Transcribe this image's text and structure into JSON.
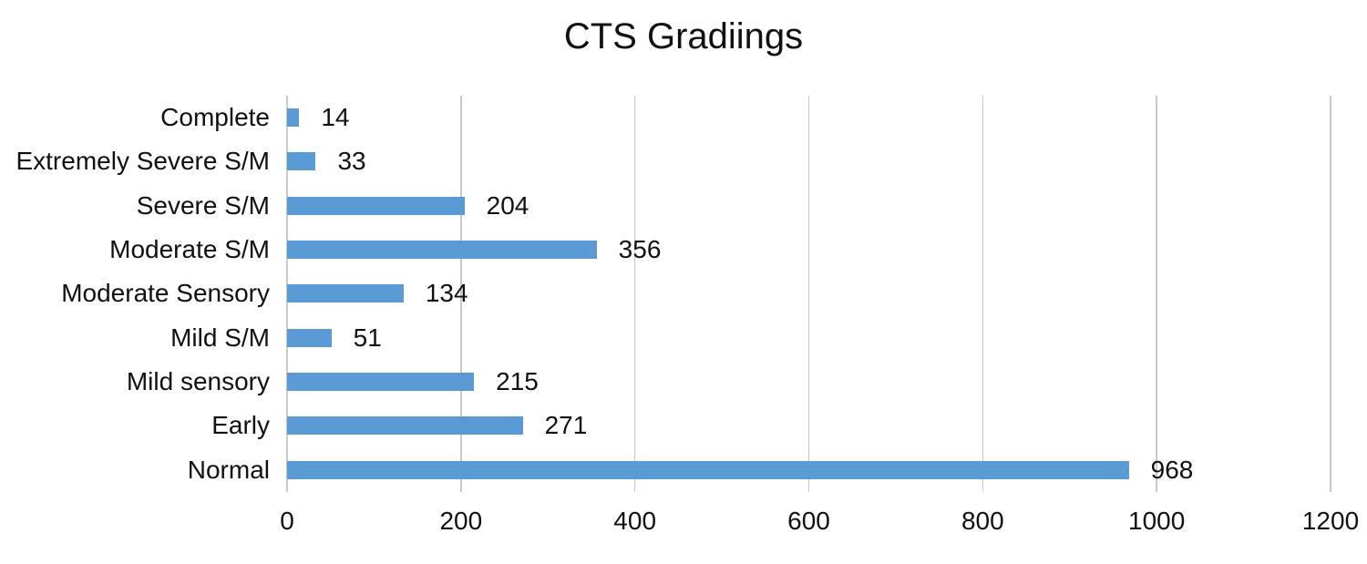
{
  "chart_data": {
    "type": "bar",
    "orientation": "horizontal",
    "title": "CTS Gradiings",
    "categories": [
      "Complete",
      "Extremely Severe S/M",
      "Severe S/M",
      "Moderate S/M",
      "Moderate Sensory",
      "Mild S/M",
      "Mild sensory",
      "Early",
      "Normal"
    ],
    "values": [
      14,
      33,
      204,
      356,
      134,
      51,
      215,
      271,
      968
    ],
    "data_labels": [
      "14",
      "33",
      "204",
      "356",
      "134",
      "51",
      "215",
      "271",
      "968"
    ],
    "xlabel": "",
    "ylabel": "",
    "xlim": [
      0,
      1200
    ],
    "x_ticks": [
      "0",
      "200",
      "400",
      "600",
      "800",
      "1000",
      "1200"
    ],
    "x_tick_values": [
      0,
      200,
      400,
      600,
      800,
      1000,
      1200
    ],
    "grid": "vertical",
    "legend_position": "none",
    "colors": {
      "bar": "#5B9BD5",
      "gridline": "#C9C9C9",
      "text": "#111111",
      "background": "#FFFFFF"
    }
  }
}
